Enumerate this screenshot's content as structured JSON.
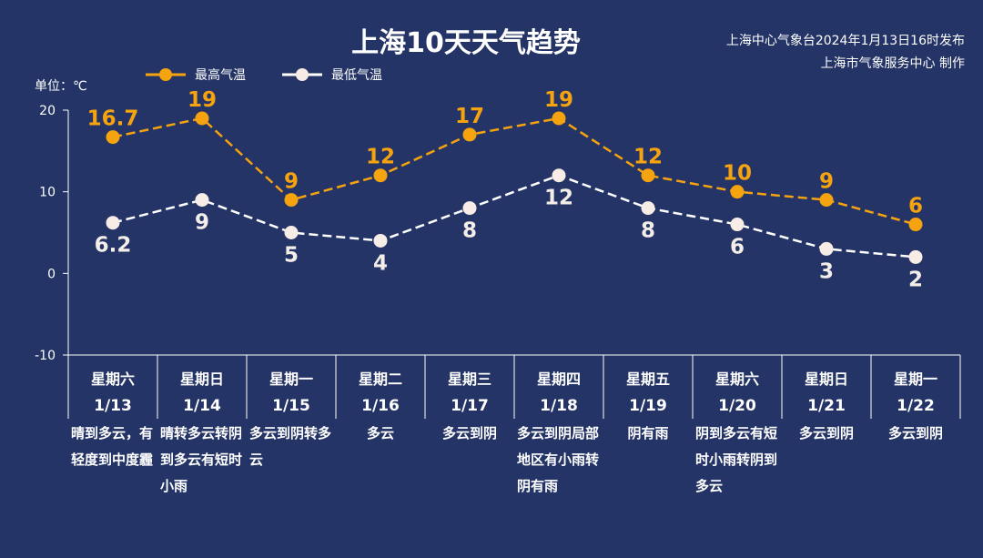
{
  "header": {
    "title": "上海10天天气趋势",
    "publish": "上海中心气象台2024年1月13日16时发布",
    "producer": "上海市气象服务中心 制作"
  },
  "colors": {
    "background": "#243466",
    "high": "#f5a30f",
    "low": "#f7ece6",
    "axis": "#ffffff"
  },
  "chart_data": {
    "type": "line",
    "ylabel": "单位：℃",
    "ylim": [
      -10,
      20
    ],
    "yticks": [
      20,
      10,
      0,
      -10
    ],
    "grid": false,
    "legend": "top-left",
    "categories": [
      {
        "weekday": "星期六",
        "date": "1/13",
        "weather": "晴到多云，有轻度到中度霾"
      },
      {
        "weekday": "星期日",
        "date": "1/14",
        "weather": "晴转多云转阴到多云有短时小雨"
      },
      {
        "weekday": "星期一",
        "date": "1/15",
        "weather": "多云到阴转多云"
      },
      {
        "weekday": "星期二",
        "date": "1/16",
        "weather": "多云"
      },
      {
        "weekday": "星期三",
        "date": "1/17",
        "weather": "多云到阴"
      },
      {
        "weekday": "星期四",
        "date": "1/18",
        "weather": "多云到阴局部地区有小雨转阴有雨"
      },
      {
        "weekday": "星期五",
        "date": "1/19",
        "weather": "阴有雨"
      },
      {
        "weekday": "星期六",
        "date": "1/20",
        "weather": "阴到多云有短时小雨转阴到多云"
      },
      {
        "weekday": "星期日",
        "date": "1/21",
        "weather": "多云到阴"
      },
      {
        "weekday": "星期一",
        "date": "1/22",
        "weather": "多云到阴"
      }
    ],
    "series": [
      {
        "name": "最高气温",
        "values": [
          16.7,
          19,
          9,
          12,
          17,
          19,
          12,
          10,
          9,
          6
        ]
      },
      {
        "name": "最低气温",
        "values": [
          6.2,
          9,
          5,
          4,
          8,
          12,
          8,
          6,
          3,
          2
        ]
      }
    ]
  }
}
